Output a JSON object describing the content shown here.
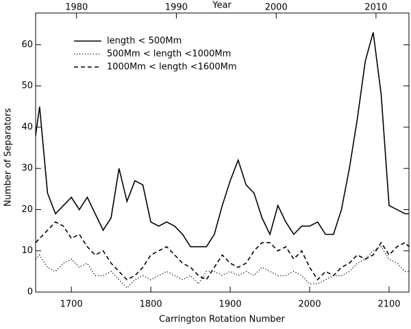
{
  "chart_data": {
    "type": "line",
    "xlabel": "Carrington Rotation Number",
    "x2label": "Year",
    "ylabel": "Number of Separators",
    "x": [
      1655,
      1660,
      1670,
      1680,
      1690,
      1700,
      1710,
      1720,
      1730,
      1740,
      1750,
      1760,
      1770,
      1780,
      1790,
      1800,
      1810,
      1820,
      1830,
      1840,
      1850,
      1860,
      1870,
      1880,
      1890,
      1900,
      1910,
      1920,
      1930,
      1940,
      1950,
      1960,
      1970,
      1980,
      1990,
      2000,
      2010,
      2020,
      2030,
      2040,
      2050,
      2060,
      2070,
      2080,
      2090,
      2100,
      2110,
      2120,
      2125
    ],
    "series": [
      {
        "name": "length < 500Mm",
        "color": "#000000",
        "dash": "solid",
        "values": [
          38,
          45,
          24,
          19,
          21,
          23,
          20,
          23,
          19,
          15,
          18,
          30,
          22,
          27,
          26,
          17,
          16,
          17,
          16,
          14,
          11,
          11,
          11,
          14,
          21,
          27,
          32,
          26,
          24,
          18,
          14,
          21,
          17,
          14,
          16,
          16,
          17,
          14,
          14,
          20,
          30,
          42,
          56,
          63,
          48,
          21,
          20,
          19,
          19
        ]
      },
      {
        "name": "500Mm < length <1000Mm",
        "color": "#000000",
        "dash": "dotted",
        "values": [
          8,
          9,
          6,
          5,
          7,
          8,
          6,
          7,
          4,
          4,
          5,
          3,
          1,
          3,
          4,
          3,
          4,
          5,
          4,
          3,
          4,
          2,
          5,
          5,
          4,
          5,
          4,
          5,
          4,
          6,
          5,
          4,
          4,
          5,
          4,
          2,
          2,
          3,
          4,
          4,
          5,
          7,
          8,
          10,
          11,
          8,
          7,
          5,
          5
        ]
      },
      {
        "name": "1000Mm < length <1600Mm",
        "color": "#000000",
        "dash": "dashed",
        "values": [
          12,
          13,
          15,
          17,
          16,
          13,
          14,
          11,
          9,
          10,
          7,
          5,
          3,
          4,
          6,
          9,
          10,
          11,
          9,
          7,
          6,
          4,
          3,
          6,
          9,
          7,
          6,
          7,
          10,
          12,
          12,
          10,
          11,
          8,
          10,
          6,
          3,
          5,
          4,
          6,
          7,
          9,
          8,
          9,
          12,
          9,
          11,
          12,
          11
        ]
      }
    ],
    "xlim": [
      1655,
      2125
    ],
    "xticks": [
      1700,
      1800,
      1900,
      2000,
      2100
    ],
    "x2lim": [
      1975.9,
      2013.3
    ],
    "x2ticks": [
      1980,
      1990,
      2000,
      2010
    ],
    "ylim": [
      0,
      67.7
    ],
    "yticks": [
      0,
      10,
      20,
      30,
      40,
      50,
      60
    ],
    "legend": "upper left"
  }
}
